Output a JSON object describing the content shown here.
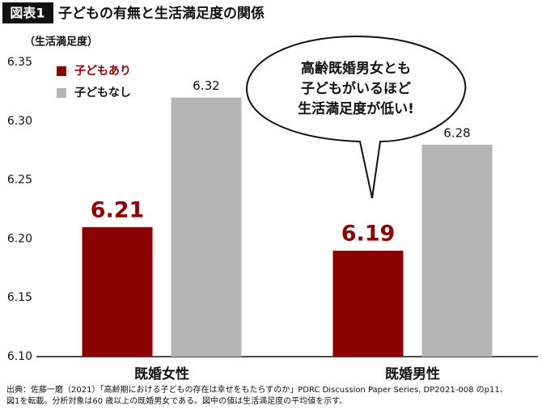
{
  "badge": "図表1",
  "chart_data": {
    "type": "bar",
    "title": "子どもの有無と生活満足度の関係",
    "ylabel": "（生活満足度）",
    "categories": [
      "既婚女性",
      "既婚男性"
    ],
    "series": [
      {
        "name": "子どもあり",
        "color": "#8b0000",
        "values": [
          6.21,
          6.19
        ]
      },
      {
        "name": "子どもなし",
        "color": "#b5b5b5",
        "values": [
          6.32,
          6.28
        ]
      }
    ],
    "ylim": [
      6.1,
      6.35
    ],
    "yticks": [
      {
        "value": 6.1,
        "label": "6.10"
      },
      6.15,
      {
        "value": 6.2,
        "label": "6.20"
      },
      6.25,
      {
        "value": 6.3,
        "label": "6.30"
      },
      6.35
    ],
    "grid": false,
    "legend": "upper-left",
    "annotation": [
      "高齢既婚男女とも",
      "子どもがいるほど",
      "生活満足度が低い!"
    ],
    "source": [
      "出典：佐藤一磨（2021）「高齢期における子どもの存在は幸せをもたらすのか」PDRC Discussion Paper Series, DP2021-008 のp11、",
      "図1を転載。分析対象は60 歳以上の既婚男女である。図中の値は生活満足度の平均値を示す。"
    ]
  }
}
